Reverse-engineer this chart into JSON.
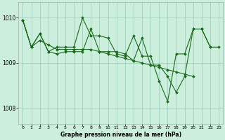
{
  "xlabel": "Graphe pression niveau de la mer (hPa)",
  "ylim": [
    1007.65,
    1010.35
  ],
  "xlim": [
    -0.5,
    23.5
  ],
  "yticks": [
    1008,
    1009,
    1010
  ],
  "xticks": [
    0,
    1,
    2,
    3,
    4,
    5,
    6,
    7,
    8,
    9,
    10,
    11,
    12,
    13,
    14,
    15,
    16,
    17,
    18,
    19,
    20,
    21,
    22,
    23
  ],
  "bg_color": "#cceedd",
  "grid_color": "#99ccbb",
  "line_color": "#1a6b1a",
  "series1": [
    1009.95,
    1009.35,
    1009.65,
    1009.25,
    1009.35,
    1009.35,
    1009.35,
    1010.0,
    1009.6,
    1009.6,
    1009.55,
    1009.2,
    1009.15,
    1009.6,
    1009.15,
    1009.15,
    1008.6,
    1008.15,
    1009.2,
    1009.2,
    1009.75,
    1009.75,
    1009.35,
    null
  ],
  "series2": [
    1009.95,
    1009.35,
    1009.65,
    1009.25,
    1009.2,
    1009.25,
    1009.25,
    1009.25,
    1009.75,
    1009.25,
    1009.25,
    1009.25,
    1009.2,
    1009.05,
    1009.55,
    1008.95,
    1008.95,
    1008.7,
    1008.35,
    1008.7,
    1009.75,
    1009.75,
    1009.35,
    1009.35
  ],
  "series3": [
    1009.95,
    1009.35,
    1009.5,
    1009.4,
    1009.3,
    1009.3,
    1009.3,
    1009.3,
    1009.3,
    1009.25,
    1009.2,
    1009.15,
    1009.1,
    1009.05,
    1009.0,
    1008.95,
    1008.9,
    1008.85,
    1008.8,
    1008.75,
    1008.7,
    null,
    null,
    null
  ]
}
